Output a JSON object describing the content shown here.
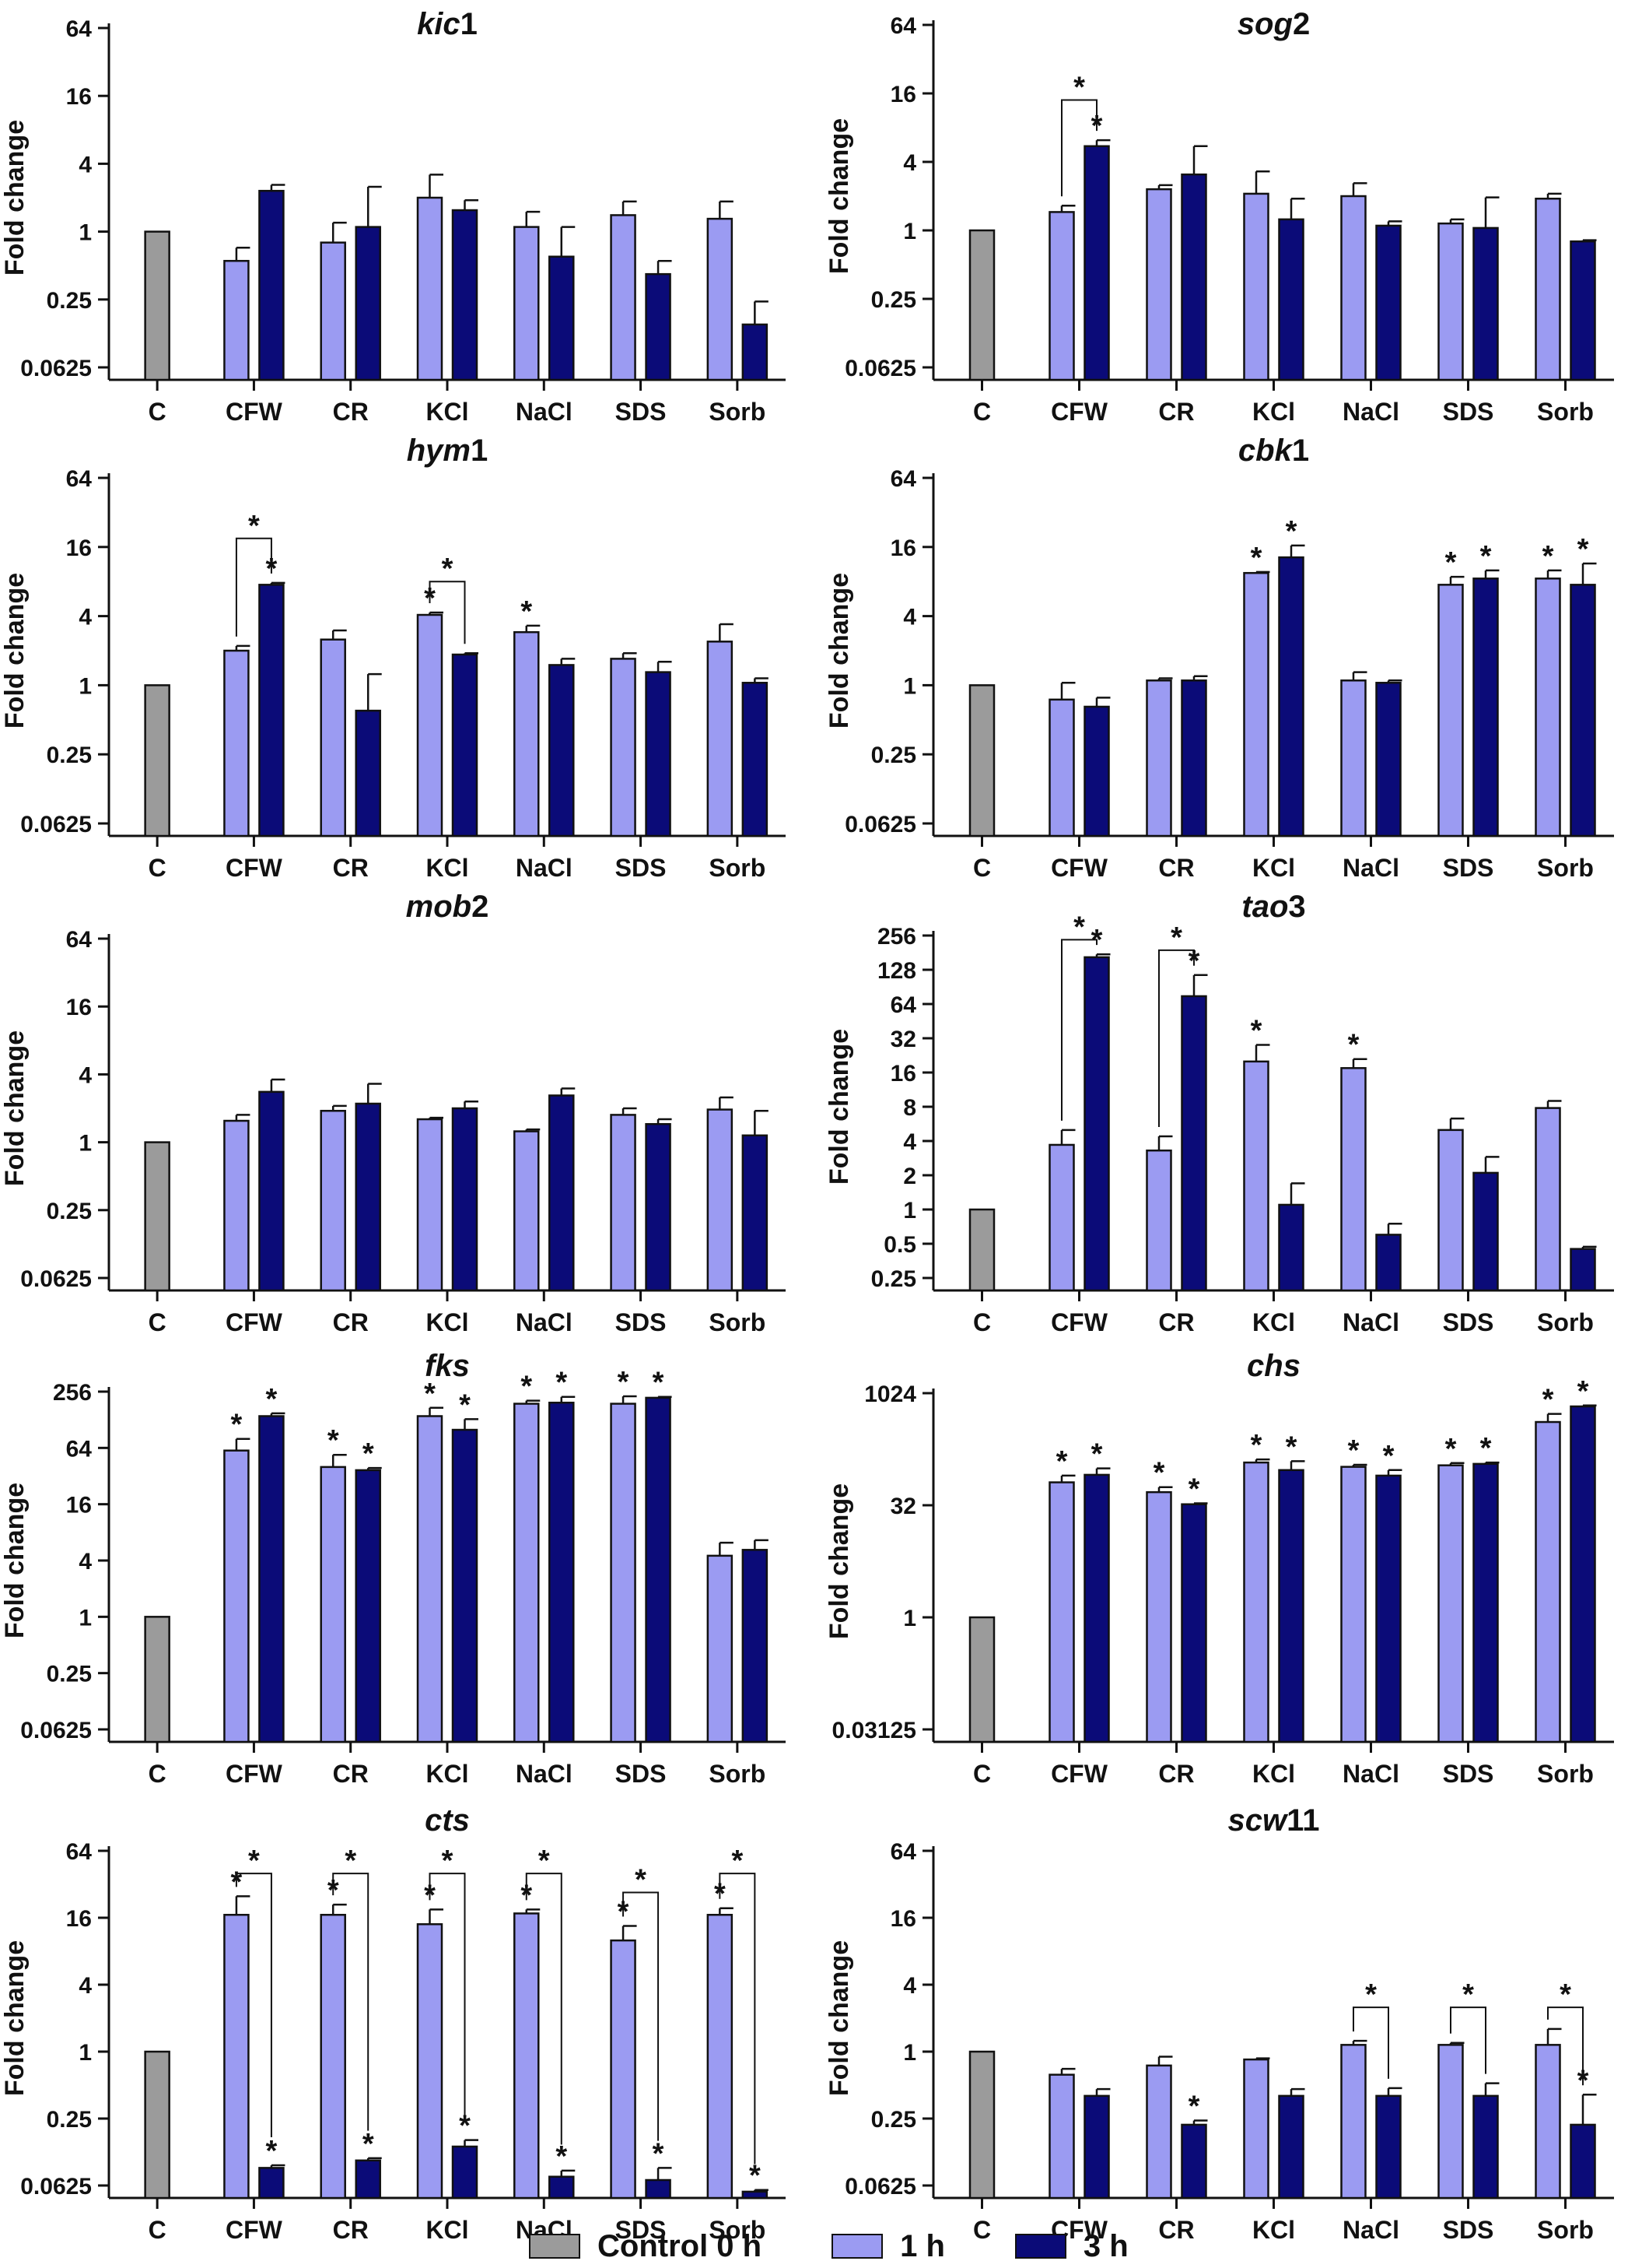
{
  "figure": {
    "ylabel": "Fold change",
    "categories": [
      "C",
      "CFW",
      "CR",
      "KCl",
      "NaCl",
      "SDS",
      "Sorb"
    ]
  },
  "colors": {
    "control": "#9b9b9b",
    "h1": "#9b9bf2",
    "h3": "#0b0b78",
    "axis": "#111111"
  },
  "legend": {
    "items": [
      {
        "label": "Control 0 h",
        "key": "control"
      },
      {
        "label": "1 h",
        "key": "h1"
      },
      {
        "label": "3 h",
        "key": "h3"
      }
    ]
  },
  "chart_data": [
    {
      "type": "bar",
      "title_italic": "kic",
      "title_rest": "1",
      "yscale": "log2",
      "ylim": [
        0.0625,
        64
      ],
      "ticks": [
        "64",
        "16",
        "4",
        "1",
        "0.25",
        "0.0625"
      ],
      "tick_values": [
        64,
        16,
        4,
        1,
        0.25,
        0.0625
      ],
      "control": 1,
      "series": [
        {
          "name": "1 h",
          "values": [
            0.55,
            0.8,
            2.0,
            1.1,
            1.4,
            1.3
          ],
          "errors": [
            0.72,
            1.2,
            3.2,
            1.5,
            1.85,
            1.85
          ]
        },
        {
          "name": "3 h",
          "values": [
            2.3,
            1.1,
            1.55,
            0.6,
            0.42,
            0.15
          ],
          "errors": [
            2.6,
            2.5,
            1.9,
            1.1,
            0.55,
            0.24
          ]
        }
      ],
      "stars": [],
      "brackets": []
    },
    {
      "type": "bar",
      "title_italic": "sog",
      "title_rest": "2",
      "yscale": "log2",
      "ylim": [
        0.0625,
        64
      ],
      "ticks": [
        "64",
        "16",
        "4",
        "1",
        "0.25",
        "0.0625"
      ],
      "tick_values": [
        64,
        16,
        4,
        1,
        0.25,
        0.0625
      ],
      "control": 1,
      "series": [
        {
          "name": "1 h",
          "values": [
            1.45,
            2.3,
            2.1,
            2.0,
            1.15,
            1.9
          ],
          "errors": [
            1.65,
            2.5,
            3.3,
            2.6,
            1.25,
            2.1
          ]
        },
        {
          "name": "3 h",
          "values": [
            5.5,
            3.1,
            1.25,
            1.1,
            1.05,
            0.8
          ],
          "errors": [
            6.2,
            5.5,
            1.9,
            1.2,
            1.95,
            0.82
          ]
        }
      ],
      "stars": [
        {
          "cat": 1,
          "series": "3 h",
          "value": 6.2
        }
      ],
      "brackets": [
        {
          "cat": 1,
          "from": 1.65,
          "to": 6.2,
          "top": 14
        }
      ]
    },
    {
      "type": "bar",
      "title_italic": "hym",
      "title_rest": "1",
      "yscale": "log2",
      "ylim": [
        0.0625,
        64
      ],
      "ticks": [
        "64",
        "16",
        "4",
        "1",
        "0.25",
        "0.0625"
      ],
      "tick_values": [
        64,
        16,
        4,
        1,
        0.25,
        0.0625
      ],
      "control": 1,
      "series": [
        {
          "name": "1 h",
          "values": [
            2.0,
            2.5,
            4.1,
            2.9,
            1.7,
            2.4
          ],
          "errors": [
            2.2,
            3.0,
            4.3,
            3.3,
            1.9,
            3.4
          ]
        },
        {
          "name": "3 h",
          "values": [
            7.5,
            0.6,
            1.85,
            1.5,
            1.3,
            1.05
          ],
          "errors": [
            7.8,
            1.25,
            1.9,
            1.7,
            1.6,
            1.15
          ]
        }
      ],
      "stars": [
        {
          "cat": 1,
          "series": "3 h",
          "value": 7.8
        },
        {
          "cat": 3,
          "series": "1 h",
          "value": 4.3
        },
        {
          "cat": 4,
          "series": "1 h",
          "value": 3.3
        }
      ],
      "brackets": [
        {
          "cat": 1,
          "from": 2.2,
          "to": 7.8,
          "top": 19
        },
        {
          "cat": 3,
          "from": 4.3,
          "to": 1.9,
          "top": 8
        }
      ]
    },
    {
      "type": "bar",
      "title_italic": "cbk",
      "title_rest": "1",
      "yscale": "log2",
      "ylim": [
        0.0625,
        64
      ],
      "ticks": [
        "64",
        "16",
        "4",
        "1",
        "0.25",
        "0.0625"
      ],
      "tick_values": [
        64,
        16,
        4,
        1,
        0.25,
        0.0625
      ],
      "control": 1,
      "series": [
        {
          "name": "1 h",
          "values": [
            0.75,
            1.1,
            9.5,
            1.1,
            7.5,
            8.5
          ],
          "errors": [
            1.05,
            1.15,
            9.7,
            1.3,
            8.8,
            10.0
          ]
        },
        {
          "name": "3 h",
          "values": [
            0.65,
            1.1,
            13.0,
            1.05,
            8.5,
            7.5
          ],
          "errors": [
            0.78,
            1.2,
            16.5,
            1.1,
            10.0,
            11.5
          ]
        }
      ],
      "stars": [
        {
          "cat": 3,
          "series": "1 h",
          "value": 9.7
        },
        {
          "cat": 3,
          "series": "3 h",
          "value": 16.5
        },
        {
          "cat": 5,
          "series": "1 h",
          "value": 8.8
        },
        {
          "cat": 5,
          "series": "3 h",
          "value": 10.0
        },
        {
          "cat": 6,
          "series": "1 h",
          "value": 10.0
        },
        {
          "cat": 6,
          "series": "3 h",
          "value": 11.5
        }
      ],
      "brackets": []
    },
    {
      "type": "bar",
      "title_italic": "mob",
      "title_rest": "2",
      "yscale": "log2",
      "ylim": [
        0.0625,
        64
      ],
      "ticks": [
        "64",
        "16",
        "4",
        "1",
        "0.25",
        "0.0625"
      ],
      "tick_values": [
        64,
        16,
        4,
        1,
        0.25,
        0.0625
      ],
      "control": 1,
      "series": [
        {
          "name": "1 h",
          "values": [
            1.55,
            1.9,
            1.6,
            1.25,
            1.75,
            1.95
          ],
          "errors": [
            1.75,
            2.1,
            1.65,
            1.3,
            2.0,
            2.5
          ]
        },
        {
          "name": "3 h",
          "values": [
            2.8,
            2.2,
            2.0,
            2.6,
            1.45,
            1.15
          ],
          "errors": [
            3.6,
            3.3,
            2.3,
            3.0,
            1.6,
            1.9
          ]
        }
      ],
      "stars": [],
      "brackets": []
    },
    {
      "type": "bar",
      "title_italic": "tao",
      "title_rest": "3",
      "yscale": "log2",
      "ylim": [
        0.25,
        256
      ],
      "ticks": [
        "256",
        "128",
        "64",
        "32",
        "16",
        "8",
        "4",
        "2",
        "1",
        "0.5",
        "0.25"
      ],
      "tick_values": [
        256,
        128,
        64,
        32,
        16,
        8,
        4,
        2,
        1,
        0.5,
        0.25
      ],
      "control": 1,
      "series": [
        {
          "name": "1 h",
          "values": [
            3.7,
            3.3,
            20,
            17.5,
            5.0,
            7.8
          ],
          "errors": [
            5.0,
            4.4,
            28,
            21,
            6.3,
            9.0
          ]
        },
        {
          "name": "3 h",
          "values": [
            165,
            75,
            1.1,
            0.6,
            2.1,
            0.45
          ],
          "errors": [
            175,
            115,
            1.7,
            0.75,
            2.9,
            0.47
          ]
        }
      ],
      "stars": [
        {
          "cat": 1,
          "series": "3 h",
          "value": 175
        },
        {
          "cat": 2,
          "series": "3 h",
          "value": 115
        },
        {
          "cat": 3,
          "series": "1 h",
          "value": 28
        },
        {
          "cat": 4,
          "series": "1 h",
          "value": 21
        }
      ],
      "brackets": [
        {
          "cat": 1,
          "from": 5.0,
          "to": 175,
          "top": 235
        },
        {
          "cat": 2,
          "from": 4.4,
          "to": 115,
          "top": 190
        }
      ]
    },
    {
      "type": "bar",
      "title_italic": "fks",
      "title_rest": "",
      "yscale": "log2",
      "ylim": [
        0.0625,
        256
      ],
      "ticks": [
        "256",
        "64",
        "16",
        "4",
        "1",
        "0.25",
        "0.0625"
      ],
      "tick_values": [
        256,
        64,
        16,
        4,
        1,
        0.25,
        0.0625
      ],
      "control": 1,
      "series": [
        {
          "name": "1 h",
          "values": [
            60,
            40,
            140,
            190,
            190,
            4.5
          ],
          "errors": [
            80,
            54,
            172,
            205,
            228,
            6.2
          ]
        },
        {
          "name": "3 h",
          "values": [
            140,
            37,
            100,
            195,
            220,
            5.2
          ],
          "errors": [
            150,
            39,
            130,
            225,
            225,
            6.6
          ]
        }
      ],
      "stars": [
        {
          "cat": 1,
          "series": "1 h",
          "value": 80
        },
        {
          "cat": 1,
          "series": "3 h",
          "value": 150
        },
        {
          "cat": 2,
          "series": "1 h",
          "value": 54
        },
        {
          "cat": 2,
          "series": "3 h",
          "value": 39
        },
        {
          "cat": 3,
          "series": "1 h",
          "value": 172
        },
        {
          "cat": 3,
          "series": "3 h",
          "value": 130
        },
        {
          "cat": 4,
          "series": "1 h",
          "value": 205
        },
        {
          "cat": 4,
          "series": "3 h",
          "value": 225
        },
        {
          "cat": 5,
          "series": "1 h",
          "value": 228
        },
        {
          "cat": 5,
          "series": "3 h",
          "value": 225
        }
      ],
      "brackets": []
    },
    {
      "type": "bar",
      "title_italic": "chs",
      "title_rest": "",
      "yscale": "log2",
      "ylim": [
        0.03125,
        1024
      ],
      "ticks": [
        "1024",
        "32",
        "1",
        "0.03125"
      ],
      "tick_values": [
        1024,
        32,
        1,
        0.03125
      ],
      "control": 1,
      "series": [
        {
          "name": "1 h",
          "values": [
            65,
            48,
            120,
            105,
            110,
            420
          ],
          "errors": [
            80,
            56,
            132,
            112,
            118,
            540
          ]
        },
        {
          "name": "3 h",
          "values": [
            82,
            33,
            95,
            80,
            115,
            680
          ],
          "errors": [
            100,
            34,
            125,
            95,
            120,
            700
          ]
        }
      ],
      "stars": [
        {
          "cat": 1,
          "series": "1 h",
          "value": 80
        },
        {
          "cat": 1,
          "series": "3 h",
          "value": 100
        },
        {
          "cat": 2,
          "series": "1 h",
          "value": 56
        },
        {
          "cat": 2,
          "series": "3 h",
          "value": 34
        },
        {
          "cat": 3,
          "series": "1 h",
          "value": 132
        },
        {
          "cat": 3,
          "series": "3 h",
          "value": 125
        },
        {
          "cat": 4,
          "series": "1 h",
          "value": 112
        },
        {
          "cat": 4,
          "series": "3 h",
          "value": 95
        },
        {
          "cat": 5,
          "series": "1 h",
          "value": 118
        },
        {
          "cat": 5,
          "series": "3 h",
          "value": 120
        },
        {
          "cat": 6,
          "series": "1 h",
          "value": 540
        },
        {
          "cat": 6,
          "series": "3 h",
          "value": 700
        }
      ],
      "brackets": []
    },
    {
      "type": "bar",
      "title_italic": "cts",
      "title_rest": "",
      "yscale": "log2",
      "ylim": [
        0.0625,
        64
      ],
      "ticks": [
        "64",
        "16",
        "4",
        "1",
        "0.25",
        "0.0625"
      ],
      "tick_values": [
        64,
        16,
        4,
        1,
        0.25,
        0.0625
      ],
      "control": 1,
      "series": [
        {
          "name": "1 h",
          "values": [
            17,
            17,
            14,
            17.5,
            10,
            17
          ],
          "errors": [
            25,
            21,
            19,
            19,
            13.5,
            19.5
          ]
        },
        {
          "name": "3 h",
          "values": [
            0.09,
            0.105,
            0.14,
            0.075,
            0.07,
            0.055
          ],
          "errors": [
            0.095,
            0.11,
            0.16,
            0.085,
            0.09,
            0.057
          ]
        }
      ],
      "stars": [
        {
          "cat": 1,
          "series": "1 h",
          "value": 25
        },
        {
          "cat": 1,
          "series": "3 h",
          "value": 0.095
        },
        {
          "cat": 2,
          "series": "1 h",
          "value": 21
        },
        {
          "cat": 2,
          "series": "3 h",
          "value": 0.11
        },
        {
          "cat": 3,
          "series": "1 h",
          "value": 19
        },
        {
          "cat": 3,
          "series": "3 h",
          "value": 0.16
        },
        {
          "cat": 4,
          "series": "1 h",
          "value": 19
        },
        {
          "cat": 4,
          "series": "3 h",
          "value": 0.085
        },
        {
          "cat": 5,
          "series": "1 h",
          "value": 13.5
        },
        {
          "cat": 5,
          "series": "3 h",
          "value": 0.09
        },
        {
          "cat": 6,
          "series": "1 h",
          "value": 19.5
        },
        {
          "cat": 6,
          "series": "3 h",
          "value": 0.057
        }
      ],
      "brackets": [
        {
          "cat": 1,
          "from": 25,
          "to": 0.14,
          "top": 40
        },
        {
          "cat": 2,
          "from": 21,
          "to": 0.16,
          "top": 40
        },
        {
          "cat": 3,
          "from": 19,
          "to": 0.22,
          "top": 40
        },
        {
          "cat": 4,
          "from": 19,
          "to": 0.12,
          "top": 40
        },
        {
          "cat": 5,
          "from": 13.5,
          "to": 0.13,
          "top": 27
        },
        {
          "cat": 6,
          "from": 19.5,
          "to": 0.08,
          "top": 40
        }
      ]
    },
    {
      "type": "bar",
      "title_italic": "scw",
      "title_rest": "11",
      "yscale": "log2",
      "ylim": [
        0.0625,
        64
      ],
      "ticks": [
        "64",
        "16",
        "4",
        "1",
        "0.25",
        "0.0625"
      ],
      "tick_values": [
        64,
        16,
        4,
        1,
        0.25,
        0.0625
      ],
      "control": 1,
      "series": [
        {
          "name": "1 h",
          "values": [
            0.62,
            0.75,
            0.85,
            1.15,
            1.15,
            1.15
          ],
          "errors": [
            0.7,
            0.9,
            0.87,
            1.25,
            1.2,
            1.6
          ]
        },
        {
          "name": "3 h",
          "values": [
            0.4,
            0.22,
            0.4,
            0.4,
            0.4,
            0.22
          ],
          "errors": [
            0.46,
            0.24,
            0.46,
            0.47,
            0.52,
            0.41
          ]
        }
      ],
      "stars": [
        {
          "cat": 2,
          "series": "3 h",
          "value": 0.24
        },
        {
          "cat": 6,
          "series": "3 h",
          "value": 0.41
        }
      ],
      "brackets": [
        {
          "cat": 4,
          "from": 1.25,
          "to": 0.47,
          "top": 2.5
        },
        {
          "cat": 5,
          "from": 1.2,
          "to": 0.52,
          "top": 2.5
        },
        {
          "cat": 6,
          "from": 1.6,
          "to": 0.41,
          "top": 2.5
        }
      ]
    }
  ]
}
